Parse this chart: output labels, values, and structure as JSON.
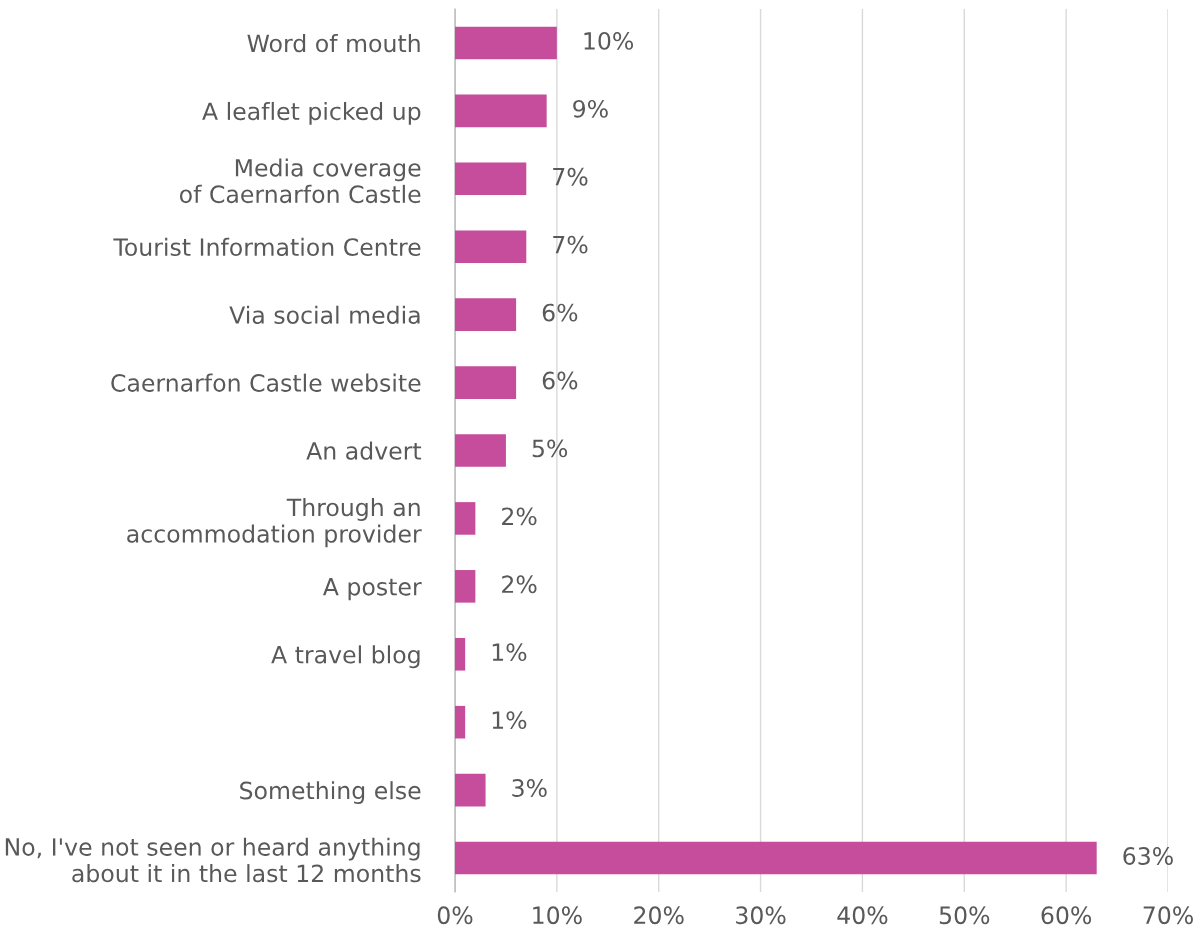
{
  "chart_data": {
    "type": "bar",
    "orientation": "horizontal",
    "categories": [
      "Word of mouth",
      "A leaflet picked up",
      "Media coverage\nof Caernarfon Castle",
      "Tourist Information Centre",
      "Via social media",
      "Caernarfon Castle website",
      "An advert",
      "Through an\naccommodation provider",
      "A poster",
      "A travel blog",
      null,
      "Something else",
      "No, I've not seen or heard anything\nabout it in the last 12 months"
    ],
    "values": [
      10,
      9,
      7,
      7,
      6,
      6,
      5,
      2,
      2,
      1,
      1,
      3,
      63
    ],
    "value_labels": [
      "10%",
      "9%",
      "7%",
      "7%",
      "6%",
      "6%",
      "5%",
      "2%",
      "2%",
      "1%",
      "1%",
      "3%",
      "63%"
    ],
    "color": "#c64d9c",
    "xlim": [
      0,
      70
    ],
    "xticks": [
      {
        "value": 0,
        "label": "0%"
      },
      {
        "value": 10,
        "label": "10%"
      },
      {
        "value": 20,
        "label": "20%"
      },
      {
        "value": 30,
        "label": "30%"
      },
      {
        "value": 40,
        "label": "40%"
      },
      {
        "value": 50,
        "label": "50%"
      },
      {
        "value": 60,
        "label": "60%"
      },
      {
        "value": 70,
        "label": "70%"
      }
    ],
    "grid": "x"
  }
}
